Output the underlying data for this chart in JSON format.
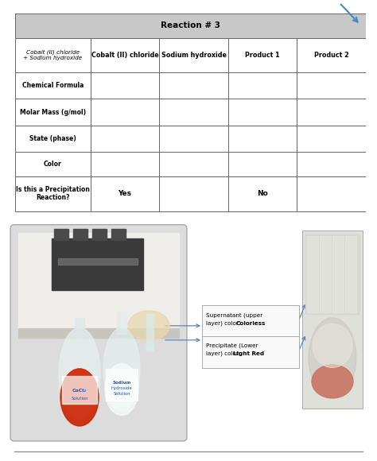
{
  "title": "Reaction # 3",
  "col_header_label": "Cobalt (II) chloride\n+ Sodium hydroxide",
  "columns": [
    "Cobalt (II) chloride",
    "Sodium hydroxide",
    "Product 1",
    "Product 2"
  ],
  "rows": [
    {
      "label": "Chemical Formula",
      "values": [
        "",
        "",
        "",
        ""
      ]
    },
    {
      "label": "Molar Mass (g/mol)",
      "values": [
        "",
        "",
        "",
        ""
      ]
    },
    {
      "label": "State (phase)",
      "values": [
        "",
        "",
        "",
        ""
      ]
    },
    {
      "label": "Color",
      "values": [
        "",
        "",
        "",
        ""
      ]
    },
    {
      "label": "Is this a Precipitation\nReaction?",
      "values": [
        "Yes",
        "",
        "No",
        ""
      ]
    }
  ],
  "bg_color": "#ffffff",
  "border_color": "#666666",
  "title_bg": "#c8c8c8",
  "annotation1_line1": "Supernatant (upper",
  "annotation1_line2": "layer) color: ",
  "annotation1_bold": "Colorless",
  "annotation2_line1": "Precipitate (Lower",
  "annotation2_line2": "layer) color: ",
  "annotation2_bold": "Light Red",
  "arrow_color": "#5588bb",
  "page_bg": "#ffffff",
  "logo_color": "#4488cc"
}
